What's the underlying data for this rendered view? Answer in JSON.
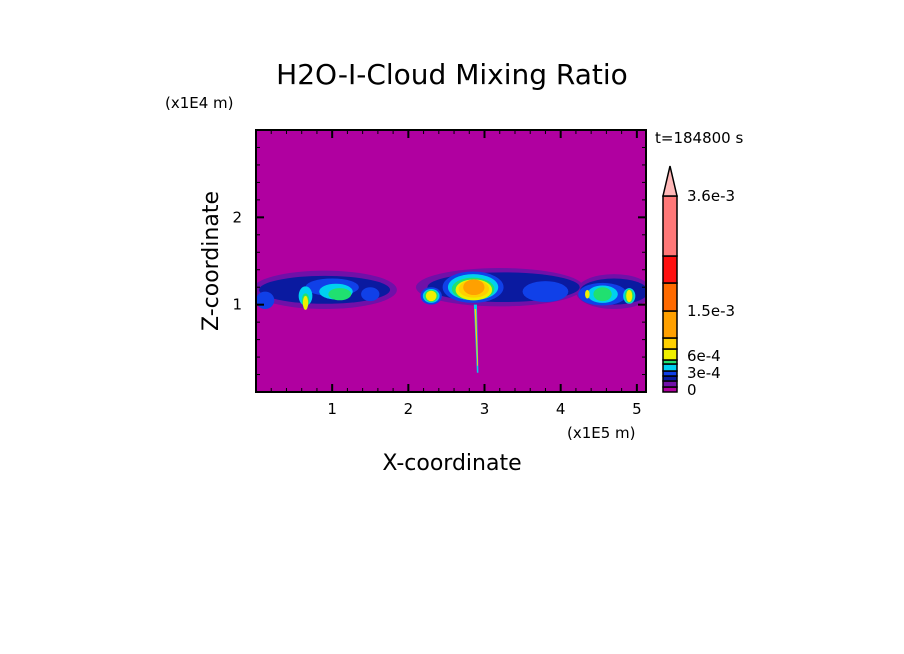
{
  "chart_data": {
    "type": "heatmap",
    "subtype": "filled-contour",
    "title": "H2O-I-Cloud Mixing Ratio",
    "xlabel": "X-coordinate",
    "ylabel": "Z-coordinate",
    "x_unit_label": "(x1E5 m)",
    "y_unit_label": "(x1E4 m)",
    "time_label": "t=184800 s",
    "xlim": [
      0,
      5.12
    ],
    "ylim": [
      0,
      3.0
    ],
    "x_ticks": [
      "1",
      "2",
      "3",
      "4",
      "5"
    ],
    "y_ticks": [
      "1",
      "2"
    ],
    "grid": false,
    "colorbar": {
      "placement": "right",
      "tick_labels": [
        {
          "label": "0",
          "value": 0
        },
        {
          "label": "3e-4",
          "value": 0.0003
        },
        {
          "label": "6e-4",
          "value": 0.0006
        },
        {
          "label": "1.5e-3",
          "value": 0.0015
        },
        {
          "label": "3.6e-3",
          "value": 0.0036
        }
      ],
      "colors": [
        "#b000a0",
        "#7010a8",
        "#0a1aa0",
        "#1040e8",
        "#00d0f0",
        "#20e070",
        "#f0f000",
        "#ffd000",
        "#ffa000",
        "#ff6a00",
        "#ff1010",
        "#ff7878"
      ],
      "overflow_color": "#ffb8b8",
      "background_color": "#b000a0"
    },
    "description_values": {
      "cloud_band_z_range": [
        0.9,
        1.4
      ],
      "max_region_x": 2.9
    }
  }
}
